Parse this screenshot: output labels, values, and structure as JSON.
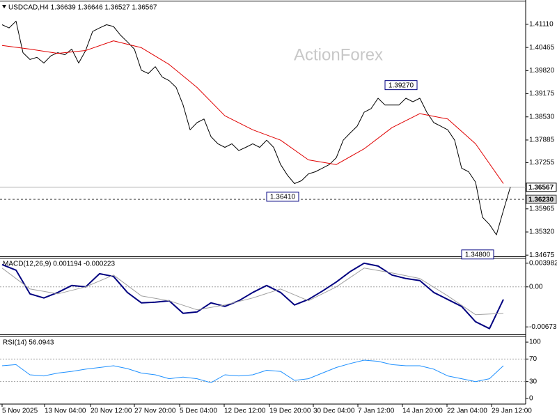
{
  "chart_data": [
    {
      "type": "line",
      "title": "USDCAD,H4  1.36639 1.36646 1.36527 1.36567",
      "watermark": "ActionForex",
      "xlim": [
        0,
        73
      ],
      "ylim": [
        1.3464,
        1.4175
      ],
      "yticks": [
        {
          "value": 1.4111,
          "label": "1.41110"
        },
        {
          "value": 1.40465,
          "label": "1.40465"
        },
        {
          "value": 1.3982,
          "label": "1.39820"
        },
        {
          "value": 1.39175,
          "label": "1.39175"
        },
        {
          "value": 1.3853,
          "label": "1.38530"
        },
        {
          "value": 1.37885,
          "label": "1.37885"
        },
        {
          "value": 1.37255,
          "label": "1.37255"
        },
        {
          "value": 1.35965,
          "label": "1.35965"
        },
        {
          "value": 1.3532,
          "label": "1.35320"
        },
        {
          "value": 1.34675,
          "label": "1.34675"
        }
      ],
      "price_lines": [
        {
          "value": 1.36567,
          "label": "1.36567",
          "color": "#000000",
          "dash": false
        },
        {
          "value": 1.3623,
          "label": "1.36230",
          "color": "#404040",
          "dash": true
        }
      ],
      "annotations": [
        {
          "x": 59.7,
          "value": 1.3927,
          "label": "1.39270"
        },
        {
          "x": 42.7,
          "value": 1.3641,
          "label": "1.36410"
        },
        {
          "x": 70.7,
          "value": 1.348,
          "label": "1.34800"
        }
      ],
      "series": [
        {
          "color": "#000000",
          "width": 1,
          "values": [
            1.411,
            1.4101,
            1.412,
            1.4032,
            1.4013,
            1.4019,
            1.4003,
            1.4023,
            1.4032,
            1.4026,
            1.4042,
            1.4003,
            1.4038,
            1.4091,
            1.4101,
            1.411,
            1.4105,
            1.4081,
            1.4062,
            1.4042,
            1.3983,
            1.3974,
            1.3993,
            1.3964,
            1.3954,
            1.3935,
            1.3886,
            1.3817,
            1.3837,
            1.3847,
            1.3798,
            1.3778,
            1.3768,
            1.3778,
            1.3759,
            1.3768,
            1.3778,
            1.3768,
            1.3788,
            1.3768,
            1.372,
            1.369,
            1.3667,
            1.3675,
            1.3694,
            1.37,
            1.371,
            1.372,
            1.3739,
            1.3788,
            1.3808,
            1.3827,
            1.3866,
            1.3876,
            1.3905,
            1.3886,
            1.3886,
            1.3886,
            1.3905,
            1.3895,
            1.3905,
            1.3866,
            1.3837,
            1.3827,
            1.3817,
            1.3788,
            1.371,
            1.37,
            1.3671,
            1.3573,
            1.3553,
            1.3524,
            1.3592,
            1.3657
          ]
        },
        {
          "color": "#e00000",
          "width": 1,
          "x": [
            0,
            4,
            8,
            12,
            16,
            20,
            24,
            28,
            32,
            36,
            40,
            44,
            48,
            52,
            56,
            60,
            64,
            68,
            72
          ],
          "values": [
            1.4052,
            1.4042,
            1.403,
            1.4038,
            1.4065,
            1.4046,
            1.3999,
            1.3935,
            1.3856,
            1.3817,
            1.3788,
            1.3733,
            1.372,
            1.3764,
            1.3823,
            1.3862,
            1.3847,
            1.3778,
            1.3667
          ]
        }
      ]
    },
    {
      "type": "line",
      "title": "MACD(12,26,9) 0.001194 -0.000223",
      "xlim": [
        0,
        73
      ],
      "ylim": [
        -0.008,
        0.0049
      ],
      "yticks": [
        0.003982,
        {
          "value": 0,
          "label": "0.00"
        },
        -0.006737
      ],
      "levels": [
        0
      ],
      "series": [
        {
          "color": "#000080",
          "width": 2,
          "x": [
            0,
            2,
            4,
            6,
            8,
            10,
            12,
            14,
            16,
            18,
            20,
            22,
            24,
            26,
            28,
            30,
            32,
            34,
            36,
            38,
            40,
            42,
            44,
            46,
            48,
            50,
            52,
            54,
            56,
            58,
            60,
            62,
            64,
            66,
            68,
            70,
            72
          ],
          "values": [
            0.00375,
            0.00281,
            -0.00117,
            -0.00187,
            -0.00094,
            0.00023,
            0,
            0.00222,
            0.00176,
            -0.00094,
            -0.00269,
            -0.00258,
            -0.00234,
            -0.00445,
            -0.00422,
            -0.00269,
            -0.00328,
            -0.00234,
            -0.00094,
            0.00023,
            -0.00094,
            -0.00304,
            -0.00211,
            -0.0007,
            0.00082,
            0.00258,
            0.00398,
            0.00351,
            0.00199,
            0.00141,
            0.00105,
            -0.00094,
            -0.00211,
            -0.00328,
            -0.00586,
            -0.00703,
            -0.00211
          ]
        },
        {
          "color": "#a0a0a0",
          "width": 1,
          "x": [
            0,
            4,
            8,
            12,
            16,
            20,
            24,
            28,
            32,
            36,
            40,
            44,
            48,
            52,
            56,
            60,
            64,
            68,
            72
          ],
          "values": [
            0.00316,
            -0.00035,
            -0.00117,
            0,
            0.00199,
            -0.00152,
            -0.00234,
            -0.00386,
            -0.00304,
            -0.00187,
            -0.00035,
            -0.00234,
            0,
            0.00316,
            0.00234,
            0.00141,
            -0.00152,
            -0.00468,
            -0.00445
          ]
        }
      ]
    },
    {
      "type": "line",
      "title": "RSI(14) 56.0943",
      "xlim": [
        0,
        73
      ],
      "ylim": [
        -10,
        110
      ],
      "yticks": [
        100,
        70,
        30,
        0
      ],
      "levels": [
        70,
        30
      ],
      "xticks": [
        {
          "value": 0,
          "label": "5 Nov 2025"
        },
        {
          "value": 6.1,
          "label": "13 Nov 04:00"
        },
        {
          "value": 12.7,
          "label": "20 Nov 12:00"
        },
        {
          "value": 19,
          "label": "27 Nov 20:00"
        },
        {
          "value": 25.5,
          "label": "5 Dec 04:00"
        },
        {
          "value": 31.9,
          "label": "12 Dec 12:00"
        },
        {
          "value": 38.4,
          "label": "19 Dec 20:00"
        },
        {
          "value": 44.7,
          "label": "30 Dec 04:00"
        },
        {
          "value": 51.1,
          "label": "7 Jan 12:00"
        },
        {
          "value": 57.5,
          "label": "14 Jan 20:00"
        },
        {
          "value": 63.9,
          "label": "22 Jan 04:00"
        },
        {
          "value": 70.3,
          "label": "29 Jan 12:00"
        }
      ],
      "series": [
        {
          "color": "#1e90ff",
          "width": 1,
          "x": [
            0,
            2,
            4,
            6,
            8,
            10,
            12,
            14,
            16,
            18,
            20,
            22,
            24,
            26,
            28,
            30,
            32,
            34,
            36,
            38,
            40,
            42,
            44,
            46,
            48,
            50,
            52,
            54,
            56,
            58,
            60,
            62,
            64,
            66,
            68,
            70,
            72
          ],
          "values": [
            58,
            60,
            42,
            40,
            45,
            48,
            52,
            55,
            58,
            53,
            45,
            42,
            35,
            38,
            35,
            28,
            42,
            40,
            42,
            50,
            48,
            32,
            35,
            45,
            55,
            62,
            68,
            66,
            60,
            58,
            58,
            52,
            40,
            35,
            30,
            35,
            58
          ]
        }
      ]
    }
  ]
}
